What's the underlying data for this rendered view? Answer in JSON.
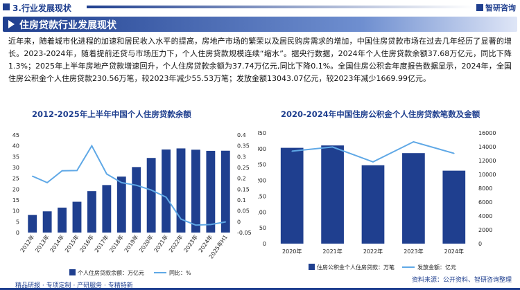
{
  "header": {
    "section": "3.行业发展现状",
    "logo": "智研咨询"
  },
  "title_bar": {
    "title": "住房贷款行业发展现状"
  },
  "paragraph": {
    "text": "近年来，随着城市化进程的加速和居民收入水平的提高，房地产市场的繁荣以及居民购房需求的增加，中国住房贷款市场在过去几年经历了显著的增长。2023-2024年，随着提前还贷与市场压力下，个人住房贷款规模连续“缩水”。据央行数据，2024年个人住房贷款余额37.68万亿元，同比下降1.3%；2025年上半年房地产贷款增速回升，个人住房贷款余额为37.74万亿元,同比下降0.1%。全国住房公积金年度报告数据显示，2024年，全国住房公积金个人住房贷款230.56万笔，较2023年减少55.53万笔；发放金额13043.07亿元，较2023年减少1669.99亿元。"
  },
  "footer": {
    "left": "精品研报 · 专项定制 · 产研服务 · 专精特新",
    "right": "资料来源：公开资料、智研咨询整理"
  },
  "colors": {
    "primary": "#1f3f8f",
    "bar": "#1f3f8f",
    "line": "#5fa8e6"
  },
  "chart_data": [
    {
      "type": "bar",
      "title": "2012-2025年上半年中国个人住房贷款余额",
      "categories": [
        "2012年",
        "2013年",
        "2014年",
        "2015年",
        "2016年",
        "2017年",
        "2018年",
        "2019年",
        "2020年",
        "2021年",
        "2022年",
        "2023年",
        "2024年",
        "2025年H1"
      ],
      "series": [
        {
          "name": "个人住房贷款余额：万亿元",
          "type": "bar",
          "axis": "left",
          "values": [
            8.1,
            9.8,
            11.5,
            14.2,
            19.1,
            21.9,
            25.8,
            30.2,
            34.4,
            38.3,
            38.8,
            38.2,
            37.68,
            37.74
          ]
        },
        {
          "name": "同比：%",
          "type": "line",
          "axis": "right",
          "values": [
            0.21,
            0.18,
            0.235,
            0.236,
            0.35,
            0.22,
            0.18,
            0.168,
            0.146,
            0.113,
            0.012,
            -0.016,
            -0.013,
            -0.001
          ]
        }
      ],
      "y_left": {
        "min": 0,
        "max": 45,
        "ticks": [
          0,
          5,
          10,
          15,
          20,
          25,
          30,
          35,
          40,
          45
        ]
      },
      "y_right": {
        "min": -0.05,
        "max": 0.4,
        "ticks": [
          -0.05,
          0,
          0.05,
          0.1,
          0.15,
          0.2,
          0.25,
          0.3,
          0.35,
          0.4
        ]
      },
      "legend": [
        "个人住房贷款余额：万亿元",
        "同比：%"
      ],
      "legend_position": "bottom"
    },
    {
      "type": "bar",
      "title": "2020-2024年中国住房公积金个人住房贷款笔数及金额",
      "categories": [
        "2020年",
        "2021年",
        "2022年",
        "2023年",
        "2024年"
      ],
      "series": [
        {
          "name": "住房公积金个人住房贷款：万笔",
          "type": "bar",
          "axis": "left",
          "values": [
            302.8,
            310.3,
            247.7,
            286.1,
            230.56
          ]
        },
        {
          "name": "发放金额：亿元",
          "type": "line",
          "axis": "right",
          "values": [
            13360,
            13964,
            11813,
            14713,
            13043.07
          ]
        }
      ],
      "y_left": {
        "min": 0,
        "max": 350,
        "ticks": [
          0,
          50,
          100,
          150,
          200,
          250,
          300,
          350
        ]
      },
      "y_right": {
        "min": 0,
        "max": 16000,
        "ticks": [
          0,
          2000,
          4000,
          6000,
          8000,
          10000,
          12000,
          14000,
          16000
        ]
      },
      "legend": [
        "住房公积金个人住房贷款：万笔",
        "发放金额：亿元"
      ],
      "legend_position": "bottom"
    }
  ]
}
